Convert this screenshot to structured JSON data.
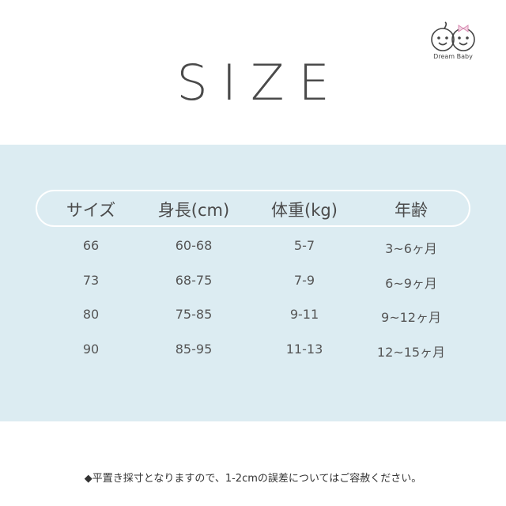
{
  "logo": {
    "text": "Dream Baby",
    "colors": {
      "bow": "#e7a8c8",
      "outline": "#444444"
    }
  },
  "title": "SIZE",
  "colors": {
    "band": "#dcecf2",
    "header_border": "#ffffff"
  },
  "table": {
    "headers": [
      "サイズ",
      "身長(cm)",
      "体重(kg)",
      "年齢"
    ],
    "rows": [
      [
        "66",
        "60-68",
        "5-7",
        "3~6ヶ月"
      ],
      [
        "73",
        "68-75",
        "7-9",
        "6~9ヶ月"
      ],
      [
        "80",
        "75-85",
        "9-11",
        "9~12ヶ月"
      ],
      [
        "90",
        "85-95",
        "11-13",
        "12~15ヶ月"
      ]
    ]
  },
  "note": "◆平置き採寸となりますので、1-2cmの誤差についてはご容赦ください。"
}
